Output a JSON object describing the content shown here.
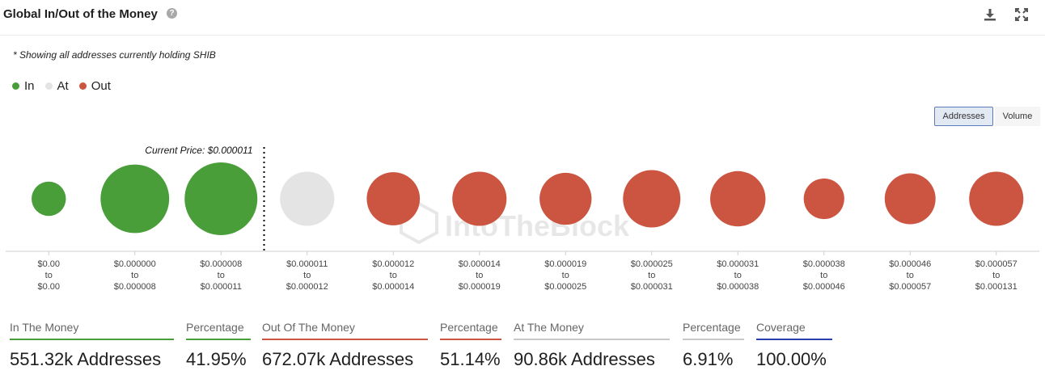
{
  "header": {
    "title": "Global In/Out of the Money",
    "help_glyph": "?",
    "icons": [
      "help-icon",
      "download-icon",
      "expand-icon"
    ]
  },
  "note": "* Showing all addresses currently holding SHIB",
  "legend": [
    {
      "label": "In",
      "color": "#4a9e3a"
    },
    {
      "label": "At",
      "color": "#e4e4e4"
    },
    {
      "label": "Out",
      "color": "#cb5540"
    }
  ],
  "toggles": {
    "addresses": "Addresses",
    "volume": "Volume",
    "selected": "addresses"
  },
  "watermark": "IntoTheBlock",
  "chart_data": {
    "type": "bubble",
    "current_price_label": "Current Price: $0.000011",
    "current_price_after_index": 2,
    "colors": {
      "in": "#4a9e3a",
      "at": "#e4e4e4",
      "out": "#cb5540"
    },
    "buckets": [
      {
        "from": "$0.00",
        "to": "$0.00",
        "status": "in",
        "size": 10
      },
      {
        "from": "$0.000000",
        "to": "$0.000008",
        "status": "in",
        "size": 40
      },
      {
        "from": "$0.000008",
        "to": "$0.000011",
        "status": "in",
        "size": 45
      },
      {
        "from": "$0.000011",
        "to": "$0.000012",
        "status": "at",
        "size": 25
      },
      {
        "from": "$0.000012",
        "to": "$0.000014",
        "status": "out",
        "size": 24
      },
      {
        "from": "$0.000014",
        "to": "$0.000019",
        "status": "out",
        "size": 25
      },
      {
        "from": "$0.000019",
        "to": "$0.000025",
        "status": "out",
        "size": 23
      },
      {
        "from": "$0.000025",
        "to": "$0.000031",
        "status": "out",
        "size": 28
      },
      {
        "from": "$0.000031",
        "to": "$0.000038",
        "status": "out",
        "size": 26
      },
      {
        "from": "$0.000038",
        "to": "$0.000046",
        "status": "out",
        "size": 14
      },
      {
        "from": "$0.000046",
        "to": "$0.000057",
        "status": "out",
        "size": 22
      },
      {
        "from": "$0.000057",
        "to": "$0.000131",
        "status": "out",
        "size": 25
      }
    ],
    "range_connector": "to"
  },
  "stats": [
    {
      "label": "In The Money",
      "value": "551.32k Addresses",
      "color": "#4a9e3a"
    },
    {
      "label": "Percentage",
      "value": "41.95%",
      "color": "#4a9e3a"
    },
    {
      "label": "Out Of The Money",
      "value": "672.07k Addresses",
      "color": "#cb5540"
    },
    {
      "label": "Percentage",
      "value": "51.14%",
      "color": "#cb5540"
    },
    {
      "label": "At The Money",
      "value": "90.86k Addresses",
      "color": "#c8c8c8"
    },
    {
      "label": "Percentage",
      "value": "6.91%",
      "color": "#c8c8c8"
    },
    {
      "label": "Coverage",
      "value": "100.00%",
      "color": "#2a3fae"
    }
  ]
}
